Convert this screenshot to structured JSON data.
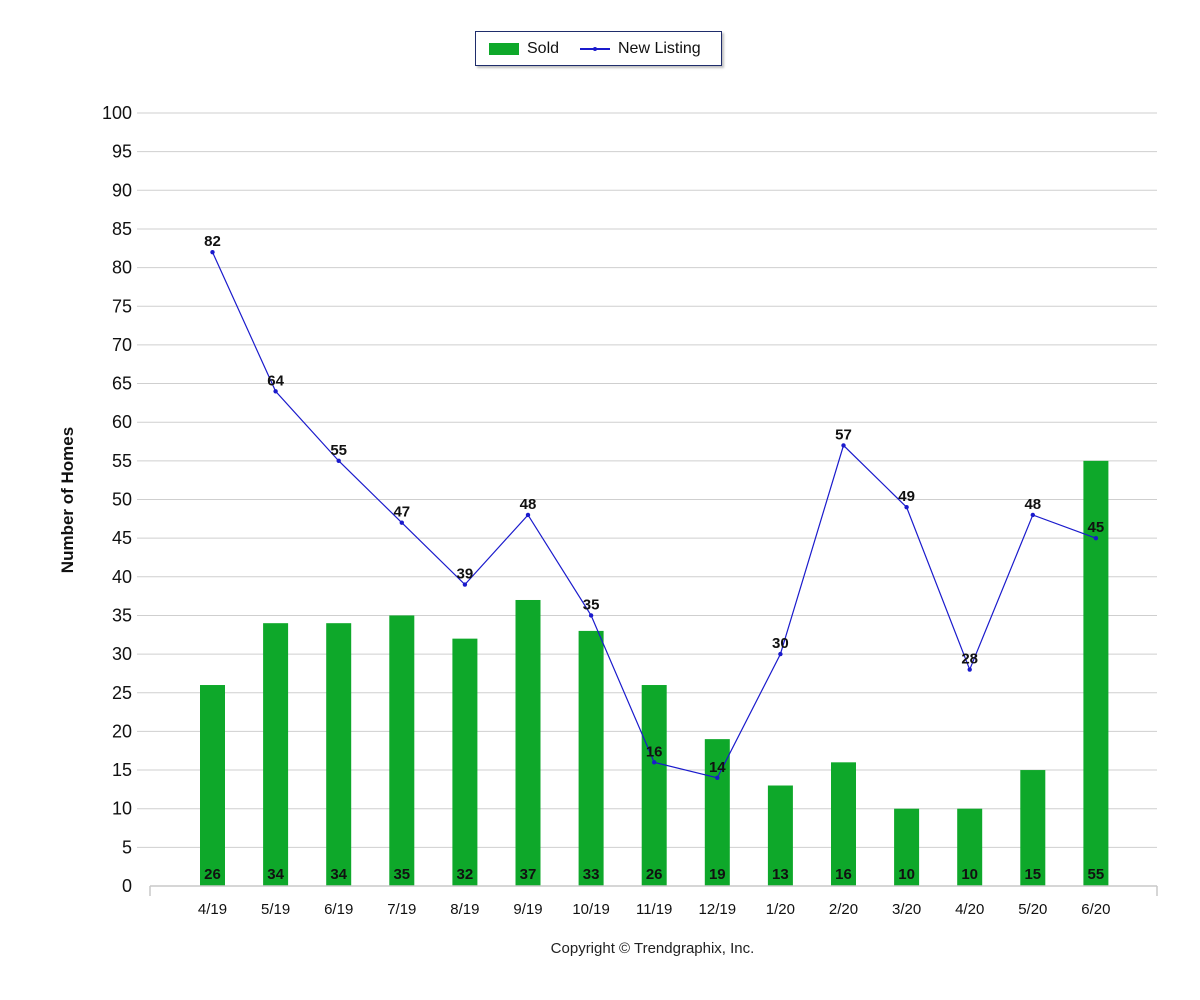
{
  "chart_data": {
    "type": "bar",
    "categories": [
      "4/19",
      "5/19",
      "6/19",
      "7/19",
      "8/19",
      "9/19",
      "10/19",
      "11/19",
      "12/19",
      "1/20",
      "2/20",
      "3/20",
      "4/20",
      "5/20",
      "6/20"
    ],
    "series": [
      {
        "name": "Sold",
        "type": "bar",
        "color": "#0ea82a",
        "values": [
          26,
          34,
          34,
          35,
          32,
          37,
          33,
          26,
          19,
          13,
          16,
          10,
          10,
          15,
          55
        ]
      },
      {
        "name": "New Listing",
        "type": "line",
        "color": "#1a1acc",
        "values": [
          82,
          64,
          55,
          47,
          39,
          48,
          35,
          16,
          14,
          30,
          57,
          49,
          28,
          48,
          45
        ]
      }
    ],
    "ylabel": "Number of Homes",
    "xlabel": "",
    "ylim": [
      0,
      100
    ],
    "ytick_step": 5,
    "grid": true,
    "legend": "top-center"
  },
  "footer": {
    "copyright": "Copyright © Trendgraphix, Inc."
  }
}
